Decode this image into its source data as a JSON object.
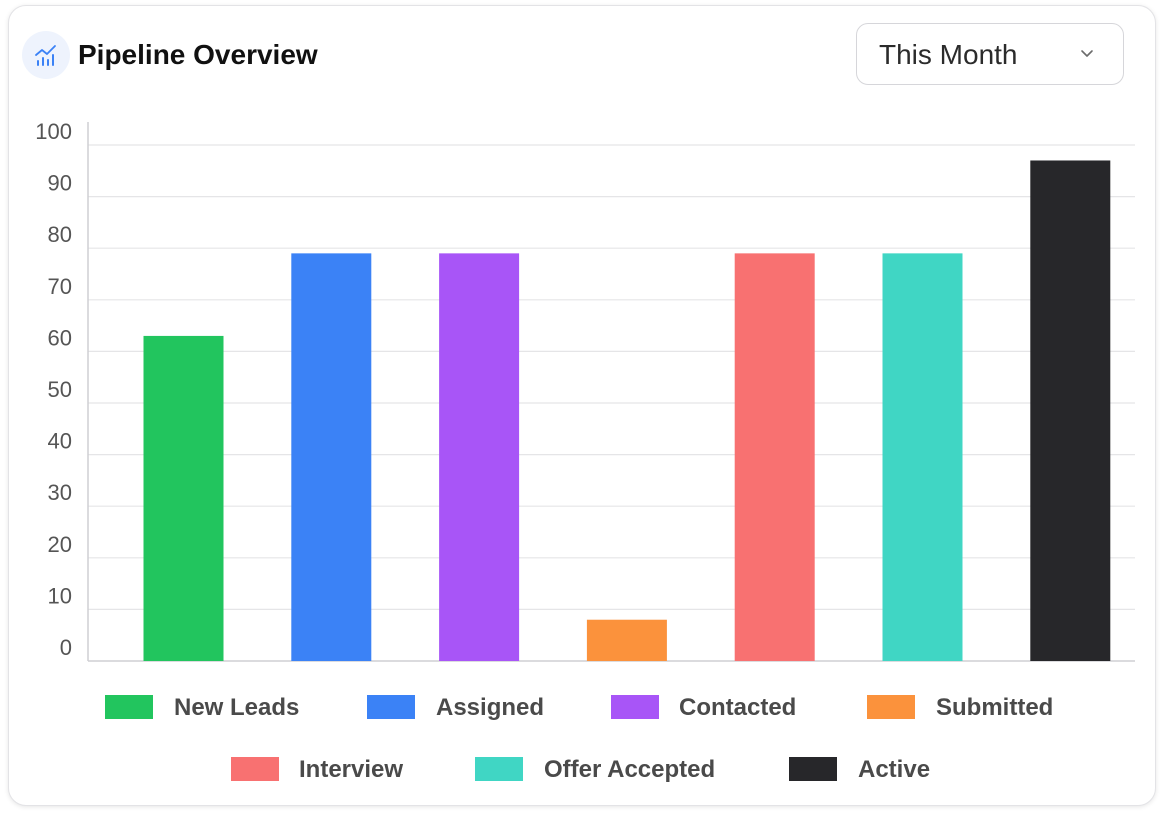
{
  "header": {
    "title": "Pipeline Overview",
    "icon": "chart-trend-icon"
  },
  "filter": {
    "selected": "This Month",
    "icon": "chevron-down-icon"
  },
  "colors": {
    "accent": "#3b82f6",
    "grid": "#e5e5e7",
    "axis": "#cfcfd3",
    "tick_text": "#555555",
    "legend_text": "#4a4a4a"
  },
  "chart_data": {
    "type": "bar",
    "categories": [
      "New Leads",
      "Assigned",
      "Contacted",
      "Submitted",
      "Interview",
      "Offer Accepted",
      "Active"
    ],
    "values": [
      63,
      79,
      79,
      8,
      79,
      79,
      97
    ],
    "colors": [
      "#22c55e",
      "#3b82f6",
      "#a855f7",
      "#fb923c",
      "#f87171",
      "#40d6c4",
      "#27272a"
    ],
    "ylim": [
      0,
      100
    ],
    "yticks": [
      0,
      10,
      20,
      30,
      40,
      50,
      60,
      70,
      80,
      90,
      100
    ],
    "grid": true,
    "legend": "bottom",
    "title": "",
    "xlabel": "",
    "ylabel": ""
  }
}
